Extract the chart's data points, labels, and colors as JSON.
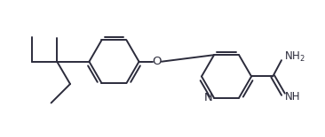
{
  "bg_color": "#ffffff",
  "line_color": "#2b2b3b",
  "line_width": 1.4,
  "font_size": 8.5,
  "figsize": [
    3.66,
    1.55
  ],
  "dpi": 100,
  "xlim": [
    0,
    9.2
  ],
  "ylim": [
    0,
    3.9
  ]
}
